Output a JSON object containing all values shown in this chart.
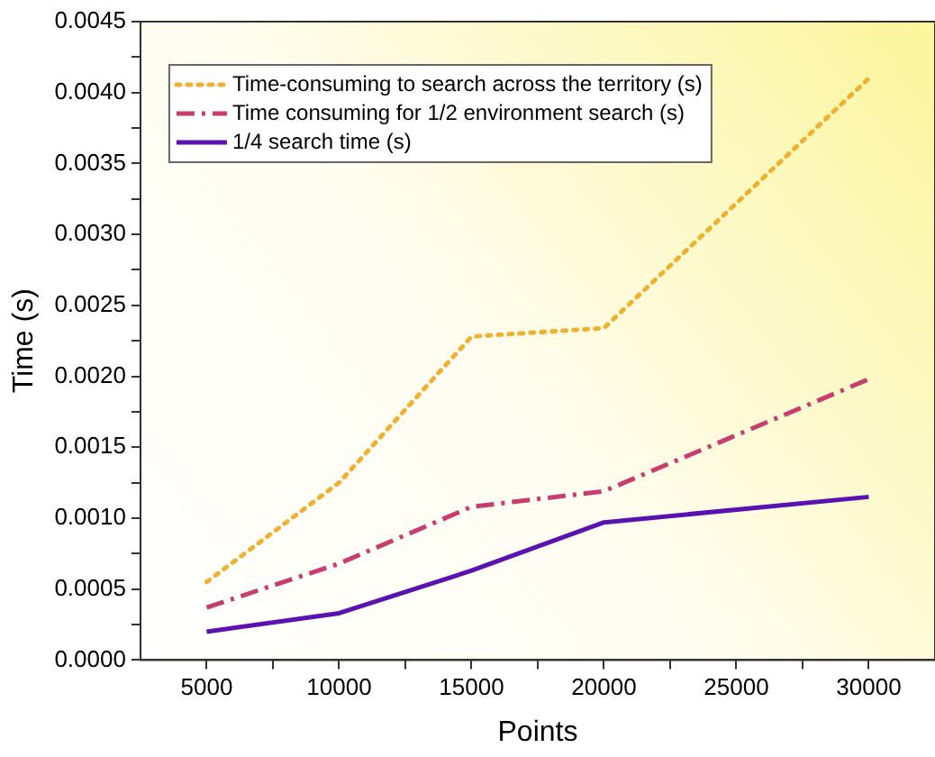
{
  "chart_data": {
    "type": "line",
    "xlabel": "Points",
    "ylabel": "Time (s)",
    "x": [
      5000,
      10000,
      15000,
      20000,
      30000
    ],
    "series": [
      {
        "name": "Time-consuming to search across the territory (s)",
        "color": "#f0b030",
        "line_style": "dotted",
        "values": [
          0.00055,
          0.00125,
          0.00228,
          0.00234,
          0.0041
        ]
      },
      {
        "name": "Time consuming for 1/2 environment search (s)",
        "color": "#c83c6e",
        "line_style": "dashed",
        "values": [
          0.00037,
          0.00068,
          0.00108,
          0.00119,
          0.00198
        ]
      },
      {
        "name": "1/4 search time (s)",
        "color": "#5a12b0",
        "line_style": "solid",
        "values": [
          0.0002,
          0.00033,
          0.00063,
          0.00097,
          0.00115
        ]
      }
    ],
    "xlim": [
      2500,
      32500
    ],
    "xticks": [
      5000,
      {
        "value": 7500,
        "label": null
      },
      10000,
      {
        "value": 12500,
        "label": null
      },
      15000,
      {
        "value": 17500,
        "label": null
      },
      20000,
      {
        "value": 22500,
        "label": null
      },
      25000,
      {
        "value": 27500,
        "label": null
      },
      30000
    ],
    "ylim": [
      0,
      0.0045
    ],
    "yticks": [
      {
        "value": 0,
        "label": "0.0000"
      },
      {
        "value": 0.00025,
        "label": null
      },
      {
        "value": 0.0005,
        "label": "0.0005"
      },
      {
        "value": 0.00075,
        "label": null
      },
      {
        "value": 0.001,
        "label": "0.0010"
      },
      {
        "value": 0.00125,
        "label": null
      },
      {
        "value": 0.0015,
        "label": "0.0015"
      },
      {
        "value": 0.00175,
        "label": null
      },
      {
        "value": 0.002,
        "label": "0.0020"
      },
      {
        "value": 0.00225,
        "label": null
      },
      {
        "value": 0.0025,
        "label": "0.0025"
      },
      {
        "value": 0.00275,
        "label": null
      },
      {
        "value": 0.003,
        "label": "0.0030"
      },
      {
        "value": 0.00325,
        "label": null
      },
      {
        "value": 0.0035,
        "label": "0.0035"
      },
      {
        "value": 0.00375,
        "label": null
      },
      {
        "value": 0.004,
        "label": "0.0040"
      },
      {
        "value": 0.00425,
        "label": null
      },
      {
        "value": 0.0045,
        "label": "0.0045"
      }
    ],
    "legend": "top left",
    "grid": false,
    "marker": "none"
  }
}
